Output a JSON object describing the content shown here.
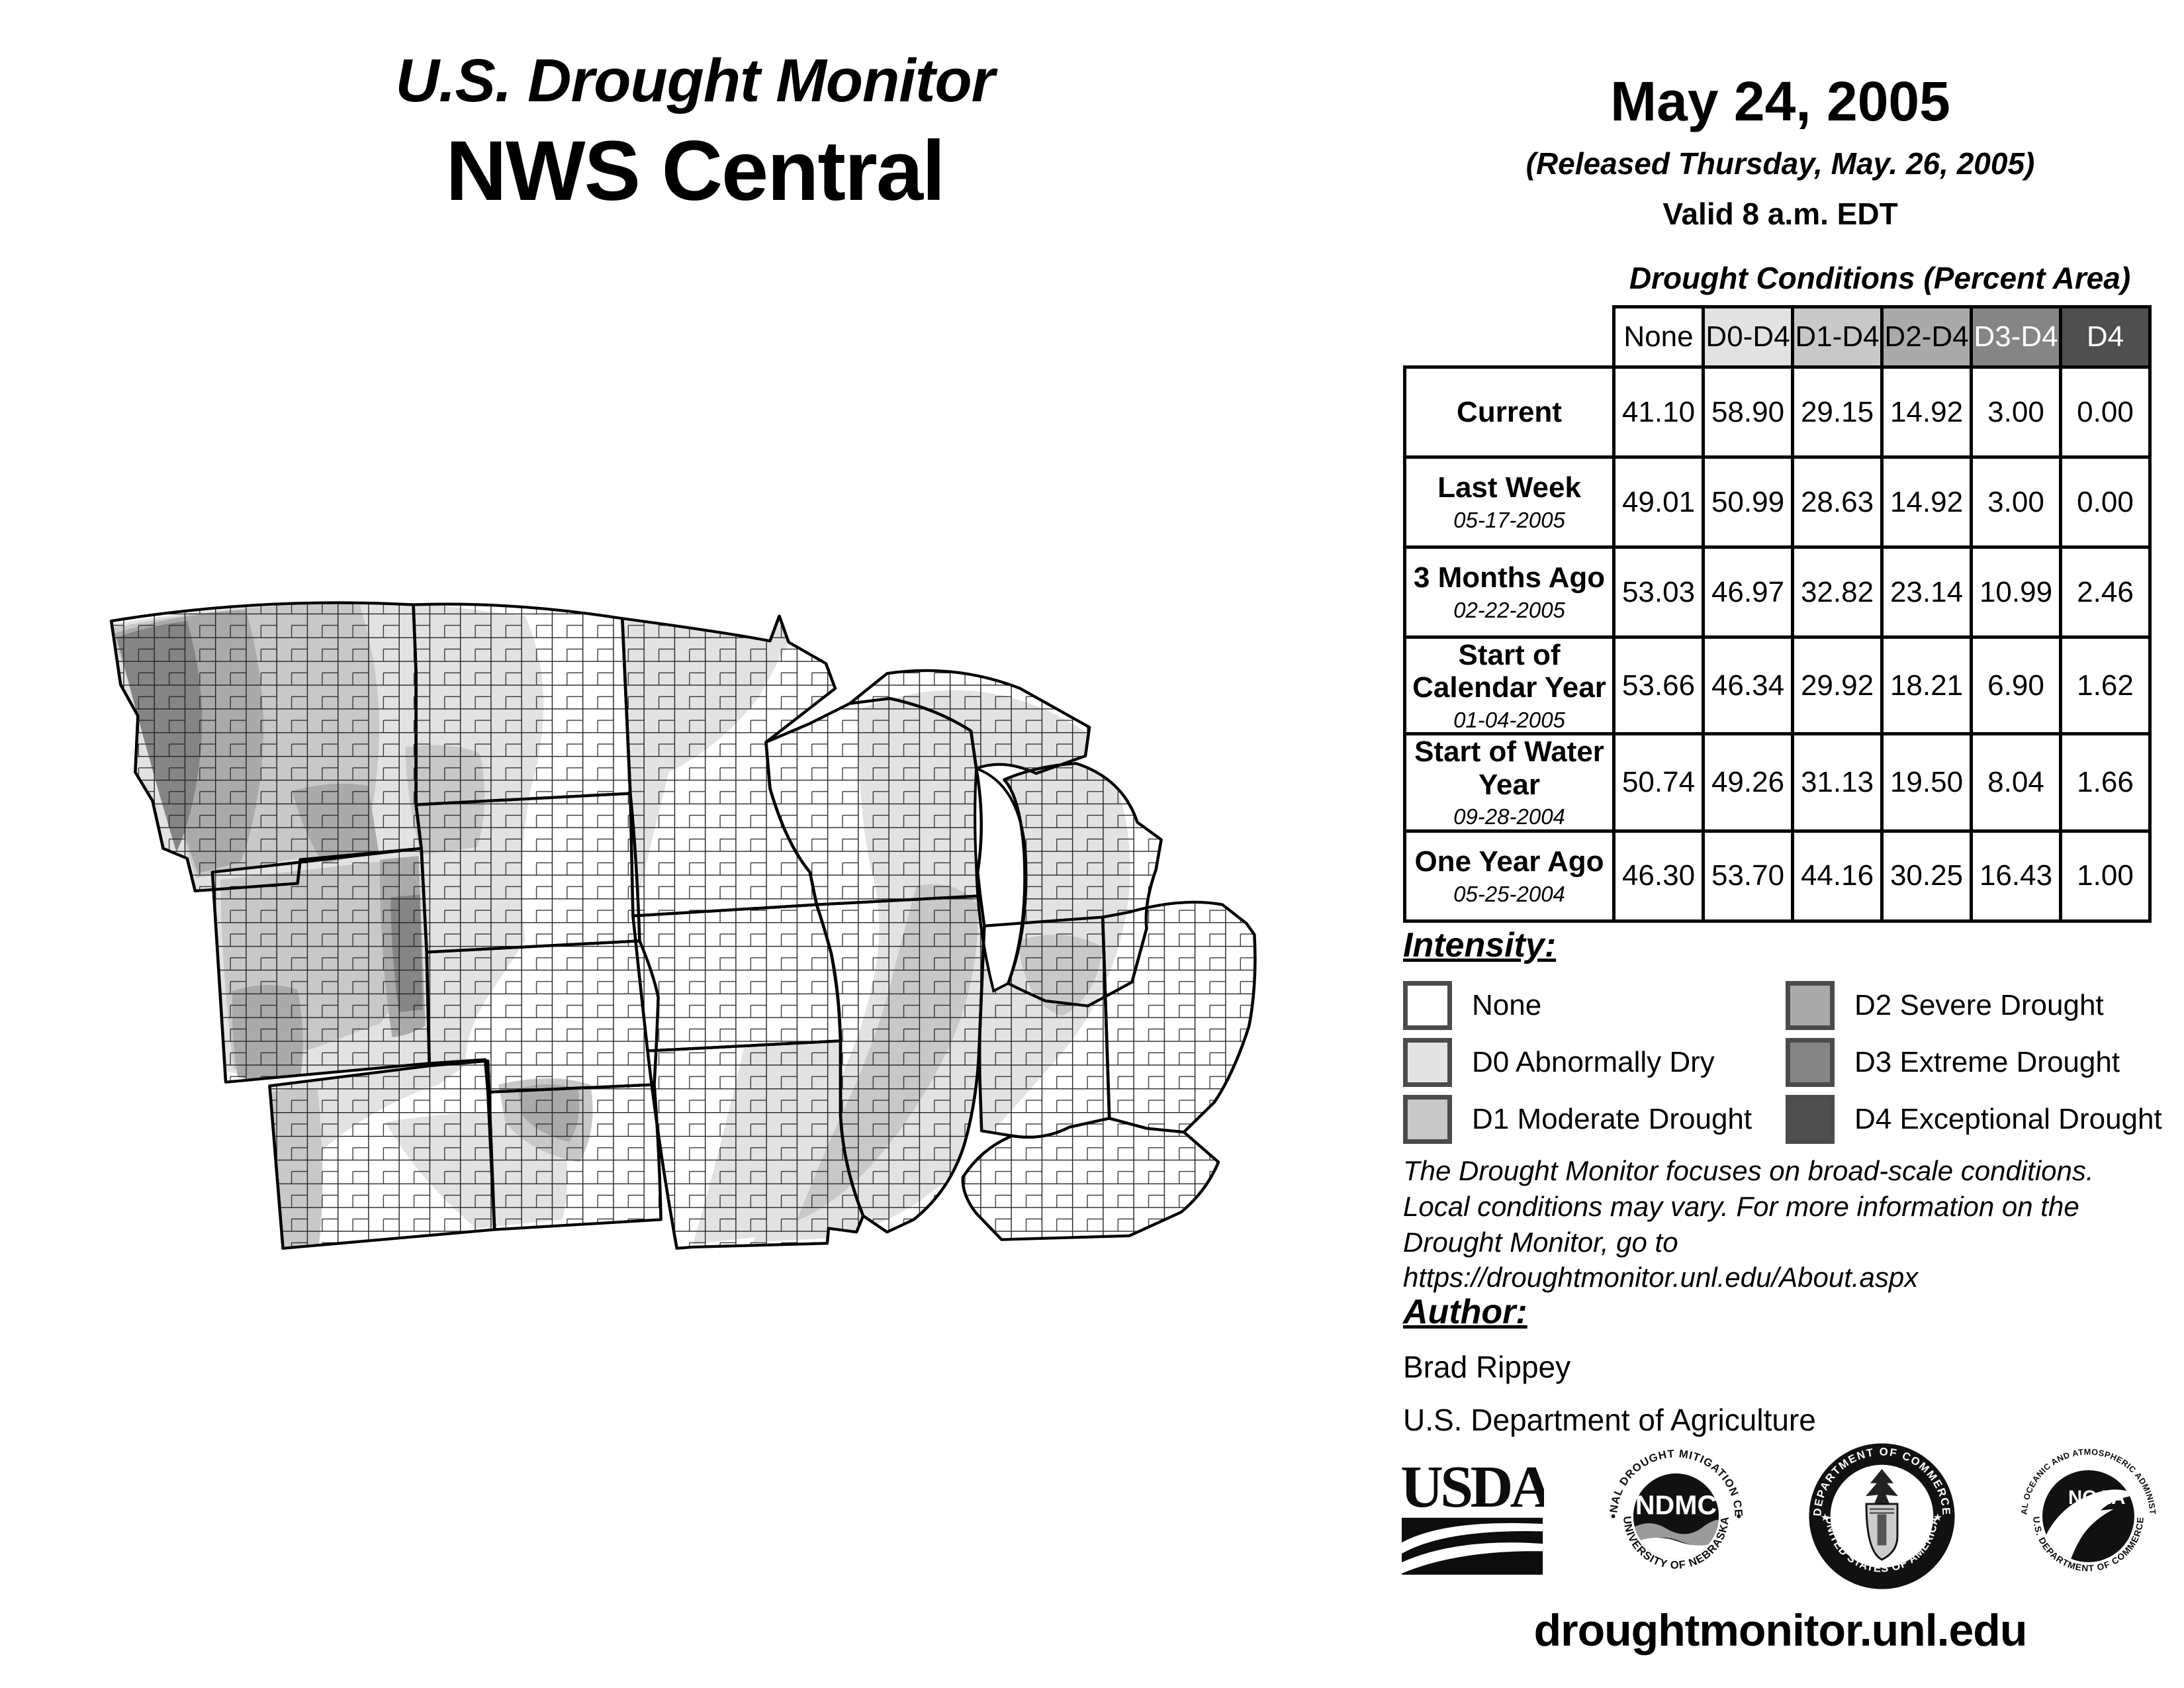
{
  "header": {
    "title_line1": "U.S. Drought Monitor",
    "title_line2": "NWS Central"
  },
  "date_block": {
    "date": "May 24, 2005",
    "released": "(Released Thursday, May. 26, 2005)",
    "valid": "Valid 8 a.m. EDT"
  },
  "table": {
    "title": "Drought Conditions (Percent Area)",
    "columns": [
      "None",
      "D0-D4",
      "D1-D4",
      "D2-D4",
      "D3-D4",
      "D4"
    ],
    "rows": [
      {
        "label": "Current",
        "date": "",
        "values": [
          "41.10",
          "58.90",
          "29.15",
          "14.92",
          "3.00",
          "0.00"
        ]
      },
      {
        "label": "Last Week",
        "date": "05-17-2005",
        "values": [
          "49.01",
          "50.99",
          "28.63",
          "14.92",
          "3.00",
          "0.00"
        ]
      },
      {
        "label": "3 Months Ago",
        "date": "02-22-2005",
        "values": [
          "53.03",
          "46.97",
          "32.82",
          "23.14",
          "10.99",
          "2.46"
        ]
      },
      {
        "label": "Start of Calendar Year",
        "date": "01-04-2005",
        "values": [
          "53.66",
          "46.34",
          "29.92",
          "18.21",
          "6.90",
          "1.62"
        ]
      },
      {
        "label": "Start of Water Year",
        "date": "09-28-2004",
        "values": [
          "50.74",
          "49.26",
          "31.13",
          "19.50",
          "8.04",
          "1.66"
        ]
      },
      {
        "label": "One Year Ago",
        "date": "05-25-2004",
        "values": [
          "46.30",
          "53.70",
          "44.16",
          "30.25",
          "16.43",
          "1.00"
        ]
      }
    ]
  },
  "legend": {
    "heading": "Intensity:",
    "items": [
      {
        "label": "None",
        "color": "#ffffff"
      },
      {
        "label": "D0 Abnormally Dry",
        "color": "#e2e2e2"
      },
      {
        "label": "D1 Moderate Drought",
        "color": "#c8c8c8"
      },
      {
        "label": "D2 Severe Drought",
        "color": "#aaaaaa"
      },
      {
        "label": "D3 Extreme Drought",
        "color": "#858585"
      },
      {
        "label": "D4 Exceptional Drought",
        "color": "#4f4f4f"
      }
    ]
  },
  "notes": {
    "lines": [
      "The Drought Monitor focuses on broad-scale conditions.",
      "Local conditions may vary. For more information on the",
      "Drought Monitor, go to https://droughtmonitor.unl.edu/About.aspx"
    ]
  },
  "author": {
    "heading": "Author:",
    "name": "Brad Rippey",
    "org": "U.S. Department of Agriculture"
  },
  "logos": {
    "usda": "USDA",
    "ndmc_center": "NDMC",
    "ndmc_top": "NATIONAL DROUGHT MITIGATION CENTER",
    "ndmc_bottom": "UNIVERSITY OF NEBRASKA",
    "doc_top": "DEPARTMENT OF COMMERCE",
    "doc_bottom": "UNITED STATES OF AMERICA",
    "noaa_center": "NOAA",
    "noaa_top": "NATIONAL OCEANIC AND ATMOSPHERIC ADMINISTRATION",
    "noaa_bottom": "U.S. DEPARTMENT OF COMMERCE"
  },
  "footer": {
    "url": "droughtmonitor.unl.edu"
  },
  "map": {
    "region": "NWS Central",
    "colors": {
      "none": "#ffffff",
      "d0": "#e2e2e2",
      "d1": "#c8c8c8",
      "d2": "#aaaaaa",
      "d3": "#858585",
      "d4": "#4f4f4f"
    }
  }
}
